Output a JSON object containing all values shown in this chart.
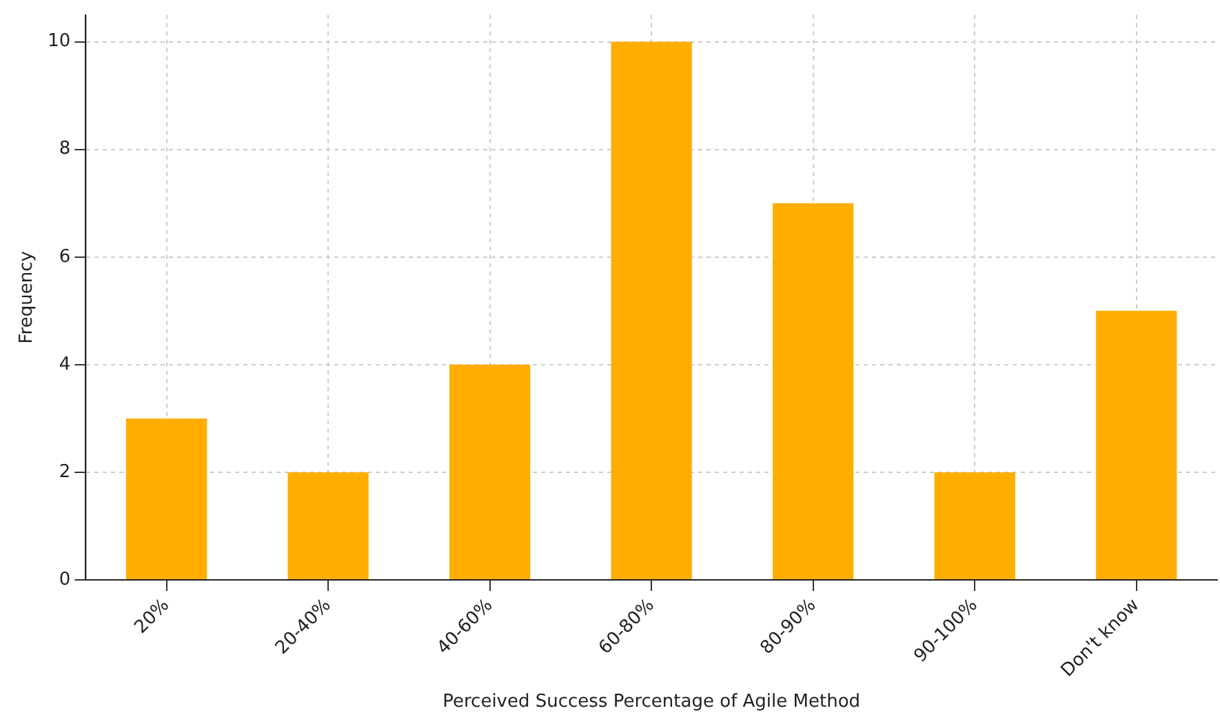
{
  "chart_data": {
    "type": "bar",
    "xlabel": "Perceived Success Percentage of Agile Method",
    "ylabel": "Frequency",
    "categories": [
      "20%",
      "20-40%",
      "40-60%",
      "60-80%",
      "80-90%",
      "90-100%",
      "Don't know"
    ],
    "values": [
      3,
      2,
      4,
      10,
      7,
      2,
      5
    ],
    "color": "#ffae00",
    "ylim": [
      0,
      10.5
    ],
    "yticks": [
      0,
      2,
      4,
      6,
      8,
      10
    ],
    "grid": true,
    "legend": false
  }
}
